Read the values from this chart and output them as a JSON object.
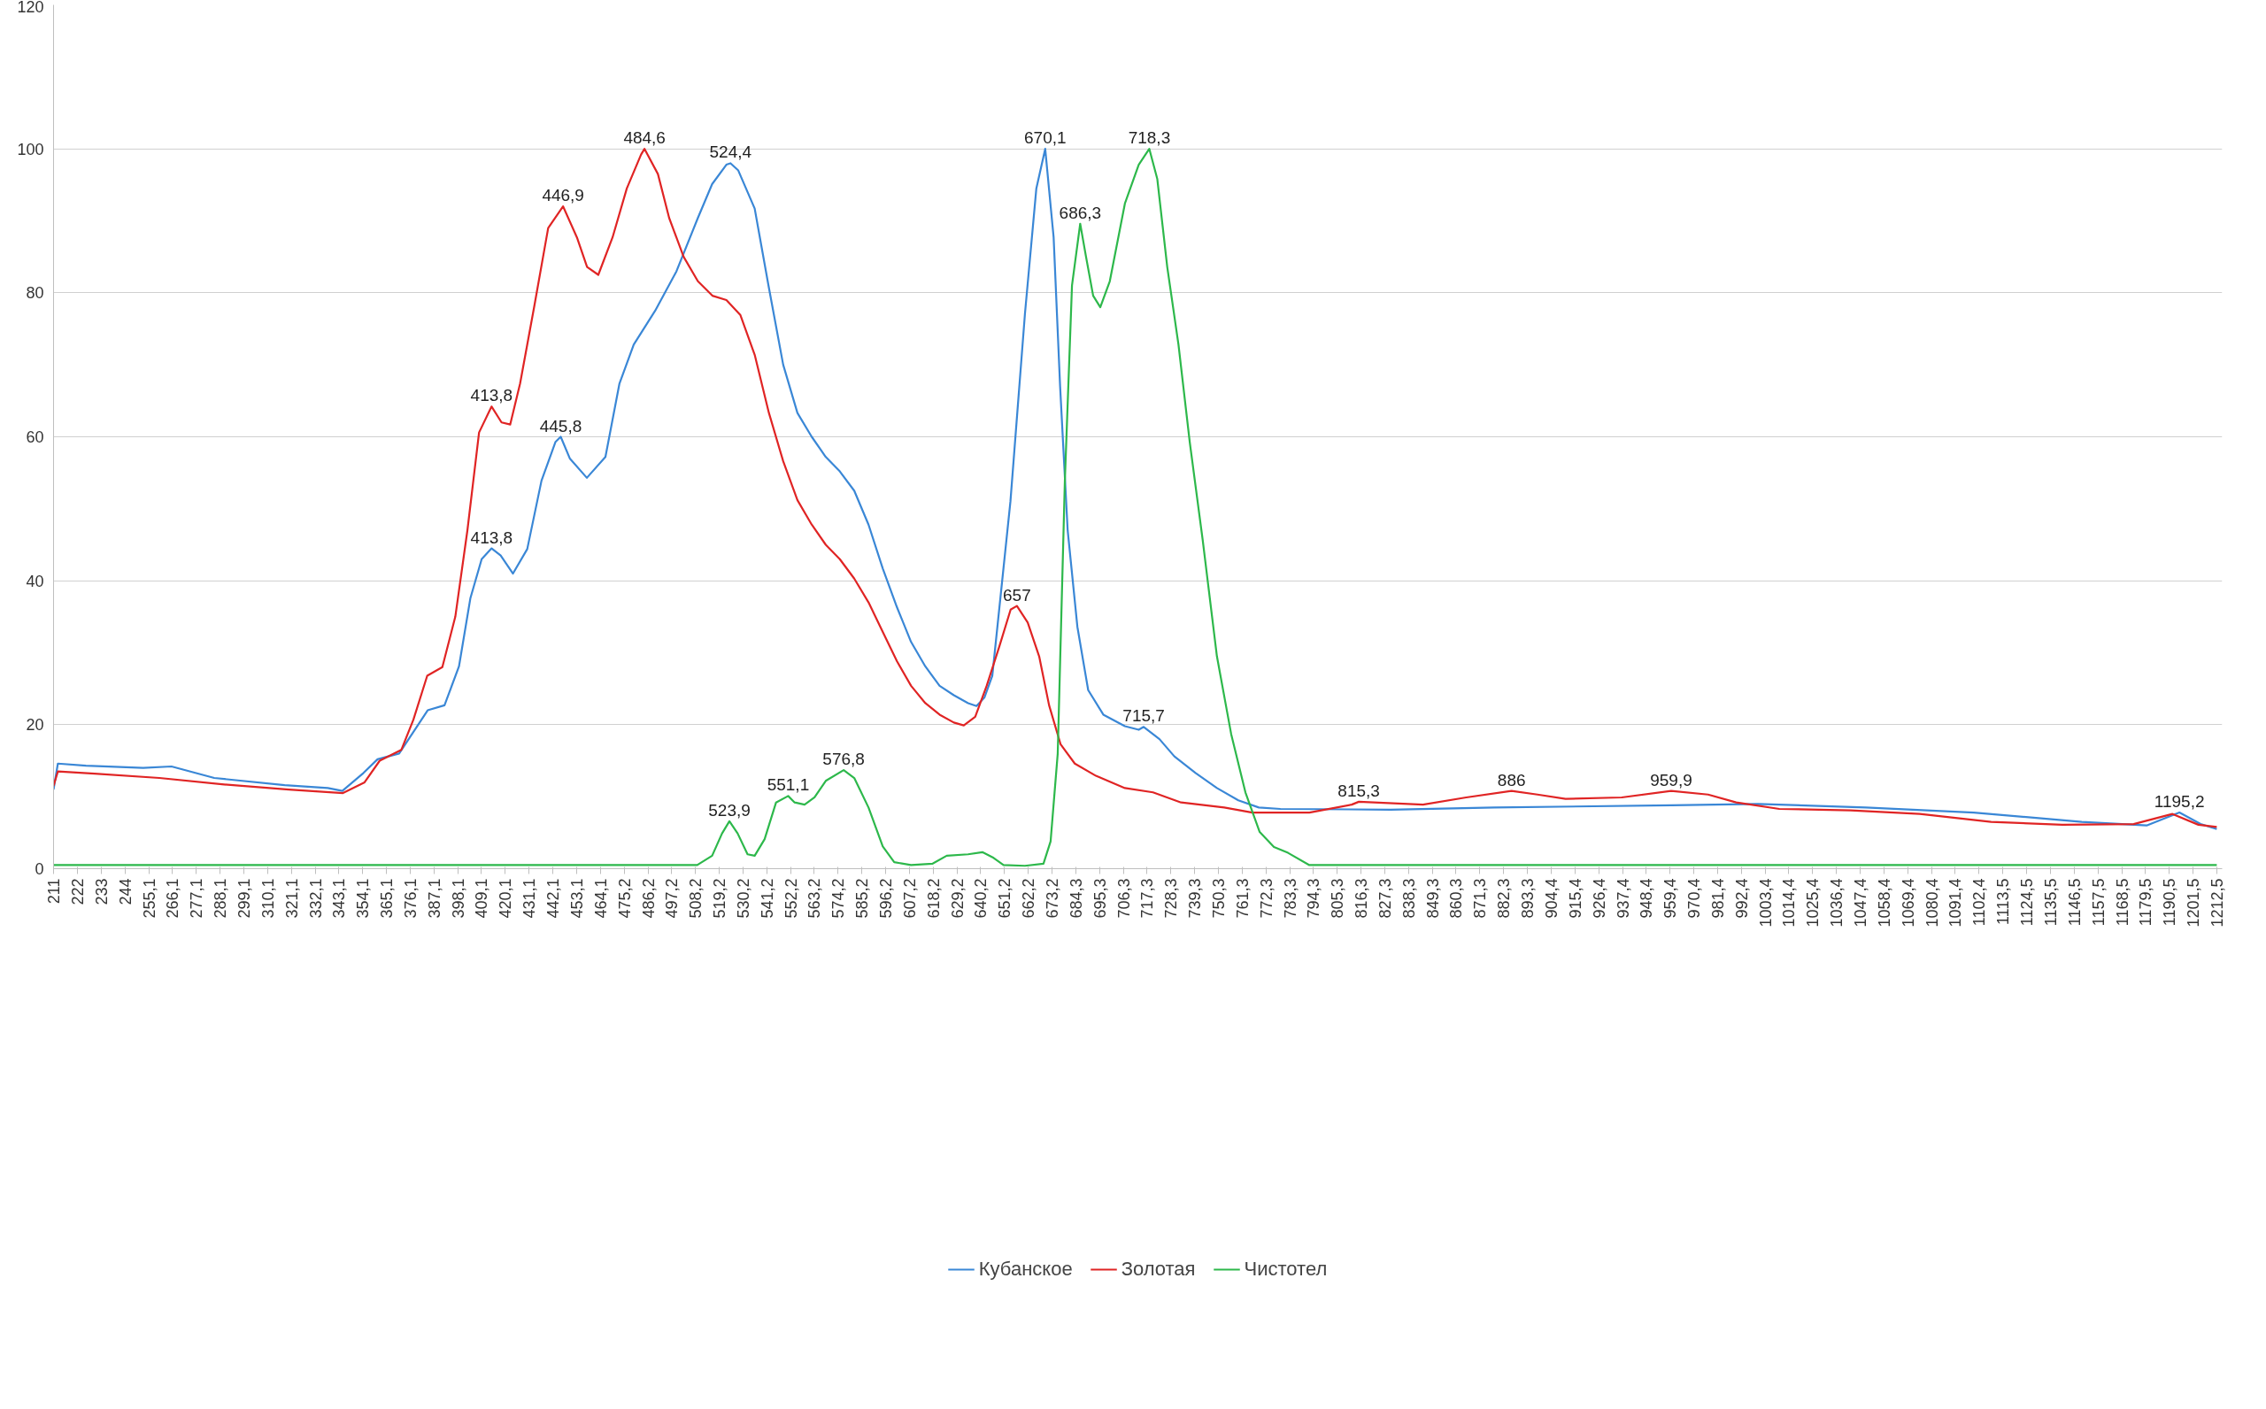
{
  "chart_data": {
    "type": "line",
    "xlim": [
      211,
      1215
    ],
    "ylim": [
      0,
      120
    ],
    "yticks": [
      0,
      20,
      40,
      60,
      80,
      100,
      120
    ],
    "grid": "y",
    "legend": "bottom",
    "marker": "none",
    "line_style": "solid",
    "xticks": [
      211,
      222,
      233,
      244,
      {
        "value": 255.1,
        "label": "255,1"
      },
      {
        "value": 266.1,
        "label": "266,1"
      },
      {
        "value": 277.1,
        "label": "277,1"
      },
      {
        "value": 288.1,
        "label": "288,1"
      },
      {
        "value": 299.1,
        "label": "299,1"
      },
      {
        "value": 310.1,
        "label": "310,1"
      },
      {
        "value": 321.1,
        "label": "321,1"
      },
      {
        "value": 332.1,
        "label": "332,1"
      },
      {
        "value": 343.1,
        "label": "343,1"
      },
      {
        "value": 354.1,
        "label": "354,1"
      },
      {
        "value": 365.1,
        "label": "365,1"
      },
      {
        "value": 376.1,
        "label": "376,1"
      },
      {
        "value": 387.1,
        "label": "387,1"
      },
      {
        "value": 398.1,
        "label": "398,1"
      },
      {
        "value": 409.1,
        "label": "409,1"
      },
      {
        "value": 420.1,
        "label": "420,1"
      },
      {
        "value": 431.1,
        "label": "431,1"
      },
      {
        "value": 442.1,
        "label": "442,1"
      },
      {
        "value": 453.1,
        "label": "453,1"
      },
      {
        "value": 464.1,
        "label": "464,1"
      },
      {
        "value": 475.2,
        "label": "475,2"
      },
      {
        "value": 486.2,
        "label": "486,2"
      },
      {
        "value": 497.2,
        "label": "497,2"
      },
      {
        "value": 508.2,
        "label": "508,2"
      },
      {
        "value": 519.2,
        "label": "519,2"
      },
      {
        "value": 530.2,
        "label": "530,2"
      },
      {
        "value": 541.2,
        "label": "541,2"
      },
      {
        "value": 552.2,
        "label": "552,2"
      },
      {
        "value": 563.2,
        "label": "563,2"
      },
      {
        "value": 574.2,
        "label": "574,2"
      },
      {
        "value": 585.2,
        "label": "585,2"
      },
      {
        "value": 596.2,
        "label": "596,2"
      },
      {
        "value": 607.2,
        "label": "607,2"
      },
      {
        "value": 618.2,
        "label": "618,2"
      },
      {
        "value": 629.2,
        "label": "629,2"
      },
      {
        "value": 640.2,
        "label": "640,2"
      },
      {
        "value": 651.2,
        "label": "651,2"
      },
      {
        "value": 662.2,
        "label": "662,2"
      },
      {
        "value": 673.2,
        "label": "673,2"
      },
      {
        "value": 684.3,
        "label": "684,3"
      },
      {
        "value": 695.3,
        "label": "695,3"
      },
      {
        "value": 706.3,
        "label": "706,3"
      },
      {
        "value": 717.3,
        "label": "717,3"
      },
      {
        "value": 728.3,
        "label": "728,3"
      },
      {
        "value": 739.3,
        "label": "739,3"
      },
      {
        "value": 750.3,
        "label": "750,3"
      },
      {
        "value": 761.3,
        "label": "761,3"
      },
      {
        "value": 772.3,
        "label": "772,3"
      },
      {
        "value": 783.3,
        "label": "783,3"
      },
      {
        "value": 794.3,
        "label": "794,3"
      },
      {
        "value": 805.3,
        "label": "805,3"
      },
      {
        "value": 816.3,
        "label": "816,3"
      },
      {
        "value": 827.3,
        "label": "827,3"
      },
      {
        "value": 838.3,
        "label": "838,3"
      },
      {
        "value": 849.3,
        "label": "849,3"
      },
      {
        "value": 860.3,
        "label": "860,3"
      },
      {
        "value": 871.3,
        "label": "871,3"
      },
      {
        "value": 882.3,
        "label": "882,3"
      },
      {
        "value": 893.3,
        "label": "893,3"
      },
      {
        "value": 904.4,
        "label": "904,4"
      },
      {
        "value": 915.4,
        "label": "915,4"
      },
      {
        "value": 926.4,
        "label": "926,4"
      },
      {
        "value": 937.4,
        "label": "937,4"
      },
      {
        "value": 948.4,
        "label": "948,4"
      },
      {
        "value": 959.4,
        "label": "959,4"
      },
      {
        "value": 970.4,
        "label": "970,4"
      },
      {
        "value": 981.4,
        "label": "981,4"
      },
      {
        "value": 992.4,
        "label": "992,4"
      },
      {
        "value": 1003.4,
        "label": "1003,4"
      },
      {
        "value": 1014.4,
        "label": "1014,4"
      },
      {
        "value": 1025.4,
        "label": "1025,4"
      },
      {
        "value": 1036.4,
        "label": "1036,4"
      },
      {
        "value": 1047.4,
        "label": "1047,4"
      },
      {
        "value": 1058.4,
        "label": "1058,4"
      },
      {
        "value": 1069.4,
        "label": "1069,4"
      },
      {
        "value": 1080.4,
        "label": "1080,4"
      },
      {
        "value": 1091.4,
        "label": "1091,4"
      },
      {
        "value": 1102.4,
        "label": "1102,4"
      },
      {
        "value": 1113.5,
        "label": "1113,5"
      },
      {
        "value": 1124.5,
        "label": "1124,5"
      },
      {
        "value": 1135.5,
        "label": "1135,5"
      },
      {
        "value": 1146.5,
        "label": "1146,5"
      },
      {
        "value": 1157.5,
        "label": "1157,5"
      },
      {
        "value": 1168.5,
        "label": "1168,5"
      },
      {
        "value": 1179.5,
        "label": "1179,5"
      },
      {
        "value": 1190.5,
        "label": "1190,5"
      },
      {
        "value": 1201.5,
        "label": "1201,5"
      },
      {
        "value": 1212.5,
        "label": "1212,5"
      }
    ],
    "series": [
      {
        "name": "Кубанское",
        "color": "#3a87d6",
        "x": [
          211,
          213,
          226,
          252.5,
          265.6,
          285.4,
          318,
          338,
          344.7,
          354.5,
          361,
          371,
          384.2,
          392,
          398.7,
          404,
          409.2,
          413.8,
          418,
          423.7,
          430.3,
          436.9,
          443.4,
          445.8,
          450,
          457.9,
          466.5,
          473,
          479.6,
          489.5,
          499.4,
          509.3,
          515.9,
          522.5,
          524.4,
          528,
          535.6,
          542,
          548.8,
          555.4,
          562,
          568.5,
          575,
          581.7,
          588.3,
          594.9,
          601.5,
          608,
          614.6,
          621.2,
          627.8,
          634.4,
          638.3,
          642,
          645.6,
          654,
          660.7,
          666,
          670.1,
          674,
          677,
          680.5,
          685,
          690,
          697,
          707,
          713.4,
          715.7,
          723,
          729.9,
          739.7,
          749.6,
          759.5,
          769,
          779,
          830,
          878,
          960,
          1000,
          1050,
          1100,
          1150,
          1180,
          1195.2,
          1205,
          1212.5
        ],
        "values": [
          11,
          14.6,
          14.3,
          14,
          14.2,
          12.6,
          11.6,
          11.2,
          10.8,
          13.3,
          15.2,
          16,
          22,
          22.7,
          28.1,
          37.6,
          43,
          44.5,
          43.5,
          41,
          44.4,
          53.9,
          59.3,
          60,
          57,
          54.3,
          57.2,
          67.4,
          72.8,
          77.5,
          83,
          90.4,
          95.1,
          97.8,
          98,
          97,
          91.7,
          81,
          70,
          63.3,
          60,
          57.2,
          55.2,
          52.5,
          47.8,
          41.7,
          36.3,
          31.5,
          28.1,
          25.4,
          24.1,
          23,
          22.6,
          23.8,
          26.8,
          51,
          77,
          94.5,
          100,
          87.7,
          67,
          47,
          33.6,
          24.8,
          21.4,
          19.8,
          19.3,
          19.7,
          18,
          15.6,
          13.3,
          11.2,
          9.5,
          8.5,
          8.3,
          8.2,
          8.5,
          8.8,
          9,
          8.5,
          7.8,
          6.5,
          6,
          7.8,
          6.2,
          5.5
        ]
      },
      {
        "name": "Золотая",
        "color": "#e02424",
        "x": [
          211,
          213,
          230,
          260,
          290,
          320,
          345,
          355,
          362,
          372,
          377.6,
          384,
          391,
          397,
          402.6,
          408,
          413.8,
          418.4,
          422.4,
          427,
          433.6,
          440,
          446.9,
          453.3,
          458,
          463.2,
          469.8,
          476.4,
          483,
          484.6,
          490.8,
          496,
          502.7,
          509.3,
          516,
          522.5,
          529,
          535.6,
          542.2,
          548.8,
          555.4,
          562,
          568.5,
          575,
          581.7,
          588.3,
          594.9,
          601.5,
          608,
          614.6,
          621.2,
          627.8,
          632.4,
          637.7,
          643,
          648.9,
          654.1,
          657,
          662,
          667.3,
          671.9,
          677.2,
          683.8,
          693.6,
          707,
          720,
          733,
          753,
          766,
          792.4,
          812,
          815.3,
          845,
          865,
          886,
          898,
          911,
          937,
          959.9,
          977,
          990,
          1010,
          1043,
          1075,
          1108,
          1141,
          1174,
          1192,
          1204,
          1212.5
        ],
        "values": [
          11.5,
          13.5,
          13.2,
          12.6,
          11.7,
          11,
          10.5,
          12,
          15,
          16.5,
          20.7,
          26.8,
          28,
          35,
          47,
          60.6,
          64.2,
          62,
          61.7,
          67.4,
          78.2,
          89,
          92,
          87.7,
          83.6,
          82.5,
          87.7,
          94.5,
          99.2,
          100,
          96.5,
          90.4,
          85,
          81.6,
          79.6,
          79,
          76.9,
          71.4,
          63.3,
          56.6,
          51.2,
          47.8,
          45,
          43,
          40.3,
          37,
          32.9,
          28.8,
          25.4,
          23,
          21.4,
          20.3,
          19.9,
          21.1,
          25.4,
          30.9,
          36,
          36.5,
          34.2,
          29.5,
          22.7,
          17.3,
          14.6,
          12.9,
          11.2,
          10.6,
          9.2,
          8.5,
          7.8,
          7.8,
          8.9,
          9.3,
          8.9,
          9.9,
          10.8,
          10.3,
          9.7,
          9.9,
          10.8,
          10.3,
          9.2,
          8.3,
          8.1,
          7.6,
          6.5,
          6.1,
          6.2,
          7.6,
          6.1,
          5.8
        ]
      },
      {
        "name": "Чистотел",
        "color": "#2db84b",
        "x": [
          211,
          509,
          515.9,
          520.5,
          523.9,
          527.7,
          532.3,
          535.6,
          540.2,
          545.5,
          551.1,
          554.1,
          558.7,
          563.3,
          568.5,
          576.8,
          581.7,
          588.3,
          594.9,
          600.2,
          608,
          618,
          624.5,
          634.4,
          641,
          646.2,
          650.8,
          660.7,
          669.3,
          672.6,
          675.9,
          679.2,
          682.5,
          686.3,
          689,
          692.3,
          695.6,
          700,
          707,
          713.4,
          718.3,
          722,
          726.6,
          731.8,
          737,
          743,
          749.6,
          756.2,
          762.8,
          769.4,
          776,
          782.5,
          792.4,
          1212.5
        ],
        "values": [
          0.5,
          0.5,
          1.8,
          4.9,
          6.6,
          4.9,
          2,
          1.8,
          4.1,
          9.2,
          10.1,
          9.2,
          8.9,
          9.9,
          12.2,
          13.7,
          12.6,
          8.5,
          3.1,
          0.9,
          0.5,
          0.7,
          1.8,
          2,
          2.3,
          1.5,
          0.5,
          0.4,
          0.7,
          3.8,
          16,
          53.9,
          81,
          89.6,
          85,
          79.6,
          78,
          81.6,
          92.4,
          97.8,
          100,
          95.8,
          83.6,
          72.8,
          59.3,
          45.7,
          29.5,
          18.7,
          10.6,
          5.1,
          3,
          2.2,
          0.5,
          0.5
        ]
      }
    ],
    "annotations": [
      {
        "text": "413,8",
        "x": 413.8,
        "y": 64.2
      },
      {
        "text": "446,9",
        "x": 446.9,
        "y": 92
      },
      {
        "text": "484,6",
        "x": 484.6,
        "y": 100
      },
      {
        "text": "657",
        "x": 657,
        "y": 36.5
      },
      {
        "text": "815,3",
        "x": 815.3,
        "y": 9.3
      },
      {
        "text": "886",
        "x": 886,
        "y": 10.8
      },
      {
        "text": "959,9",
        "x": 959.9,
        "y": 10.8
      },
      {
        "text": "413,8",
        "x": 413.8,
        "y": 44.5
      },
      {
        "text": "445,8",
        "x": 445.8,
        "y": 60
      },
      {
        "text": "524,4",
        "x": 524.4,
        "y": 98
      },
      {
        "text": "670,1",
        "x": 670.1,
        "y": 100
      },
      {
        "text": "715,7",
        "x": 715.7,
        "y": 19.7
      },
      {
        "text": "1195,2",
        "x": 1195.2,
        "y": 7.8
      },
      {
        "text": "523,9",
        "x": 523.9,
        "y": 6.6
      },
      {
        "text": "551,1",
        "x": 551.1,
        "y": 10.1
      },
      {
        "text": "576,8",
        "x": 576.8,
        "y": 13.7
      },
      {
        "text": "686,3",
        "x": 686.3,
        "y": 89.6
      },
      {
        "text": "718,3",
        "x": 718.3,
        "y": 100
      }
    ]
  }
}
